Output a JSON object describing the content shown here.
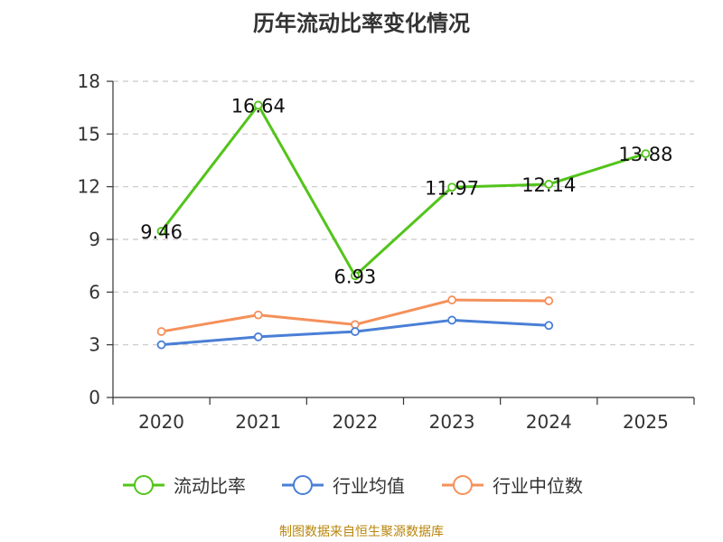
{
  "chart_data": {
    "type": "line",
    "title": "历年流动比率变化情况",
    "source": "制图数据来自恒生聚源数据库",
    "categories": [
      "2020",
      "2021",
      "2022",
      "2023",
      "2024",
      "2025"
    ],
    "ylim": [
      0,
      18
    ],
    "yticks": [
      0,
      3,
      6,
      9,
      12,
      15,
      18
    ],
    "grid": true,
    "legend_position": "bottom",
    "series": [
      {
        "name": "流动比率",
        "color": "#52c41a",
        "values": [
          9.46,
          16.64,
          6.93,
          11.97,
          12.14,
          13.88
        ],
        "labels": [
          "9.46",
          "16.64",
          "6.93",
          "11.97",
          "12.14",
          "13.88"
        ]
      },
      {
        "name": "行业均值",
        "color": "#4a7fd6",
        "values": [
          3.0,
          3.45,
          3.75,
          4.4,
          4.1,
          null
        ]
      },
      {
        "name": "行业中位数",
        "color": "#f5905a",
        "values": [
          3.75,
          4.7,
          4.15,
          5.55,
          5.5,
          null
        ]
      }
    ]
  }
}
